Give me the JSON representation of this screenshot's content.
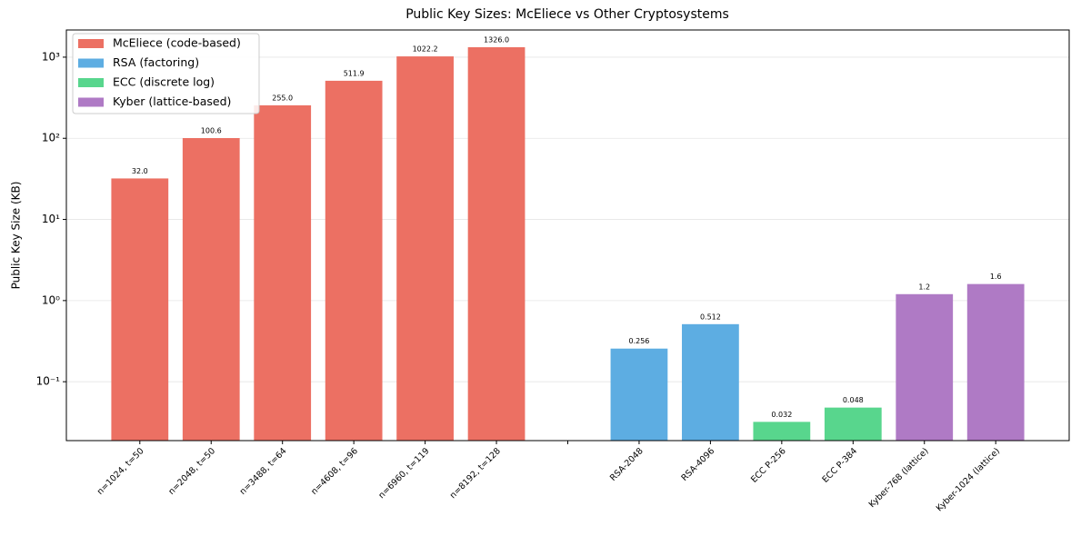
{
  "chart_data": {
    "type": "bar",
    "title": "Public Key Sizes: McEliece vs Other Cryptosystems",
    "ylabel": "Public Key Size (KB)",
    "categories": [
      "n=1024, t=50",
      "n=2048, t=50",
      "n=3488, t=64",
      "n=4608, t=96",
      "n=6960, t=119",
      "n=8192, t=128",
      null,
      "RSA-2048",
      "RSA-4096",
      "ECC P-256",
      "ECC P-384",
      "Kyber-768 (lattice)",
      "Kyber-1024 (lattice)"
    ],
    "series": [
      {
        "name": "McEliece (code-based)",
        "color": "#ec7063",
        "values": [
          32,
          100.6,
          255,
          511.9,
          1022.2,
          1326,
          null,
          null,
          null,
          null,
          null,
          null,
          null
        ],
        "value_labels": [
          "32.0",
          "100.6",
          "255.0",
          "511.9",
          "1022.2",
          "1326.0",
          null,
          null,
          null,
          null,
          null,
          null,
          null
        ]
      },
      {
        "name": "RSA (factoring)",
        "color": "#5dade2",
        "values": [
          null,
          null,
          null,
          null,
          null,
          null,
          null,
          0.256,
          0.512,
          null,
          null,
          null,
          null
        ]
      },
      {
        "name": "ECC (discrete log)",
        "color": "#58d68d",
        "values": [
          null,
          null,
          null,
          null,
          null,
          null,
          null,
          null,
          null,
          0.032,
          0.048,
          null,
          null
        ]
      },
      {
        "name": "Kyber (lattice-based)",
        "color": "#af7ac5",
        "values": [
          null,
          null,
          null,
          null,
          null,
          null,
          null,
          null,
          null,
          null,
          null,
          1.2,
          1.6
        ]
      }
    ],
    "log_scale": true,
    "ylim": [
      0.0188,
      2163
    ],
    "yticks": [
      {
        "value": 0.1,
        "label": "10⁻¹"
      },
      {
        "value": 1,
        "label": "10⁰"
      },
      {
        "value": 10,
        "label": "10¹"
      },
      {
        "value": 100,
        "label": "10²"
      },
      {
        "value": 1000,
        "label": "10³"
      }
    ],
    "grid": true,
    "legend": "upper-left"
  }
}
